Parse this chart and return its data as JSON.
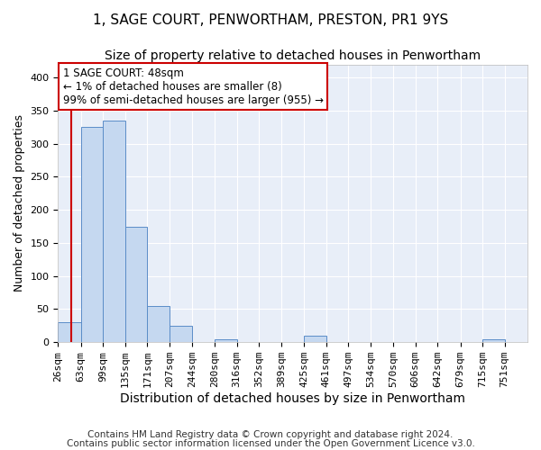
{
  "title1": "1, SAGE COURT, PENWORTHAM, PRESTON, PR1 9YS",
  "title2": "Size of property relative to detached houses in Penwortham",
  "xlabel": "Distribution of detached houses by size in Penwortham",
  "ylabel": "Number of detached properties",
  "footnote1": "Contains HM Land Registry data © Crown copyright and database right 2024.",
  "footnote2": "Contains public sector information licensed under the Open Government Licence v3.0.",
  "bin_edges": [
    26,
    63,
    99,
    135,
    171,
    207,
    244,
    280,
    316,
    352,
    389,
    425,
    461,
    497,
    534,
    570,
    606,
    642,
    679,
    715,
    751
  ],
  "bar_heights": [
    30,
    325,
    335,
    175,
    55,
    25,
    0,
    5,
    0,
    0,
    0,
    10,
    0,
    0,
    0,
    0,
    0,
    0,
    0,
    5,
    0
  ],
  "bar_color": "#c5d8f0",
  "bar_edge_color": "#5b8dc8",
  "property_size": 48,
  "annotation_line1": "1 SAGE COURT: 48sqm",
  "annotation_line2": "← 1% of detached houses are smaller (8)",
  "annotation_line3": "99% of semi-detached houses are larger (955) →",
  "annotation_box_color": "#ffffff",
  "annotation_box_edge": "#cc0000",
  "vline_color": "#cc0000",
  "ylim": [
    0,
    420
  ],
  "yticks": [
    0,
    50,
    100,
    150,
    200,
    250,
    300,
    350,
    400
  ],
  "background_color": "#e8eef8",
  "title1_fontsize": 11,
  "title2_fontsize": 10,
  "xlabel_fontsize": 10,
  "ylabel_fontsize": 9,
  "tick_fontsize": 8,
  "annotation_fontsize": 8.5,
  "footnote_fontsize": 7.5
}
